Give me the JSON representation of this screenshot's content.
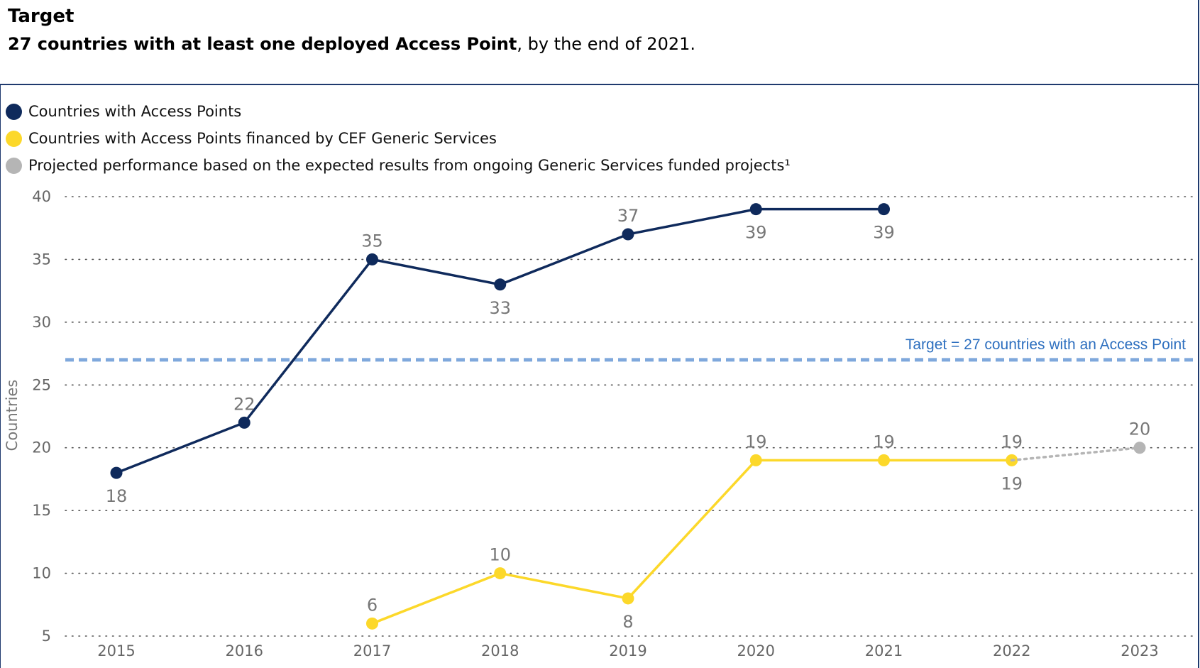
{
  "header": {
    "title": "Target",
    "subtitle_bold": "27 countries with at least one deployed Access Point",
    "subtitle_rest": ", by the end of 2021."
  },
  "legend": [
    {
      "label": "Countries with Access Points",
      "color": "#0f2a5c"
    },
    {
      "label": "Countries with Access Points financed by CEF Generic Services",
      "color": "#fcd82a"
    },
    {
      "label": "Projected performance based on the expected results from ongoing Generic Services funded projects¹",
      "color": "#b5b5b5"
    }
  ],
  "chart_data": {
    "type": "line",
    "ylabel": "Countries",
    "ylim": [
      5,
      40
    ],
    "yticks": [
      5,
      10,
      15,
      20,
      25,
      30,
      35,
      40
    ],
    "categories": [
      "2015",
      "2016",
      "2017",
      "2018",
      "2019",
      "2020",
      "2021",
      "2022",
      "2023"
    ],
    "grid": "horizontal dotted",
    "series": [
      {
        "name": "Countries with Access Points",
        "color": "#0f2a5c",
        "points": [
          {
            "x": "2015",
            "y": 18
          },
          {
            "x": "2016",
            "y": 22
          },
          {
            "x": "2017",
            "y": 35
          },
          {
            "x": "2018",
            "y": 33
          },
          {
            "x": "2019",
            "y": 37
          },
          {
            "x": "2020",
            "y": 39
          },
          {
            "x": "2021",
            "y": 39
          }
        ]
      },
      {
        "name": "Countries with Access Points financed by CEF Generic Services",
        "color": "#fcd82a",
        "points": [
          {
            "x": "2017",
            "y": 6
          },
          {
            "x": "2018",
            "y": 10
          },
          {
            "x": "2019",
            "y": 8
          },
          {
            "x": "2020",
            "y": 19
          },
          {
            "x": "2021",
            "y": 19
          },
          {
            "x": "2022",
            "y": 19
          }
        ]
      },
      {
        "name": "Projected performance based on the expected results from ongoing Generic Services funded projects¹",
        "color": "#b5b5b5",
        "points": [
          {
            "x": "2022",
            "y": 19
          },
          {
            "x": "2023",
            "y": 20
          }
        ]
      }
    ],
    "target": {
      "value": 27,
      "label": "Target = 27 countries with an Access Point",
      "color": "#7fa8dc"
    }
  }
}
